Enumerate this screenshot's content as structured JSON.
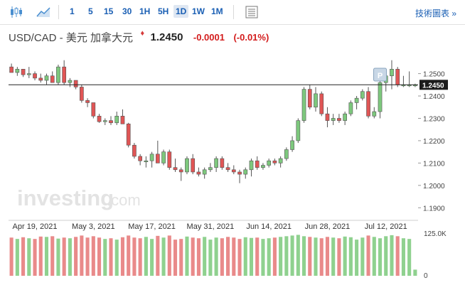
{
  "toolbar": {
    "timeframes": [
      "1",
      "5",
      "15",
      "30",
      "1H",
      "5H",
      "1D",
      "1W",
      "1M"
    ],
    "active_timeframe": "1D",
    "icons": [
      "candlestick-chart-icon",
      "area-chart-icon",
      "data-table-icon"
    ],
    "tech_link": "技術圖表 »"
  },
  "header": {
    "pair": "USD/CAD - 美元 加拿大元",
    "price": "1.2450",
    "change": "-0.0001",
    "change_pct": "(-0.01%)"
  },
  "colors": {
    "up": "#7dc87d",
    "down": "#e05555",
    "vol_up": "#8fd18f",
    "vol_down": "#e98a8a",
    "accent": "#1a5fb4"
  },
  "watermark": {
    "main": "investing",
    "suffix": ".com"
  },
  "chart_data": {
    "type": "candlestick",
    "title": "",
    "xlabel": "",
    "ylabel": "",
    "ylim": [
      1.185,
      1.2575
    ],
    "y_ticks": [
      "1.2500",
      "1.2400",
      "1.2300",
      "1.2200",
      "1.2100",
      "1.2000",
      "1.1900"
    ],
    "current_price": "1.2450",
    "x_tick_labels": [
      "Apr 19, 2021",
      "May 3, 2021",
      "May 17, 2021",
      "May 31, 2021",
      "Jun 14, 2021",
      "Jun 28, 2021",
      "Jul 12, 2021"
    ],
    "x_tick_index": [
      4,
      14,
      24,
      34,
      44,
      54,
      64
    ],
    "volume_ticks": [
      "125.0K",
      "0"
    ],
    "volume_max": 125,
    "marker_label": "P",
    "marker_index": 63,
    "grid": false,
    "series": [
      {
        "d": "Apr 13",
        "o": 1.253,
        "h": 1.2545,
        "l": 1.2505,
        "c": 1.2505,
        "v": 112
      },
      {
        "d": "Apr 14",
        "o": 1.2505,
        "h": 1.253,
        "l": 1.249,
        "c": 1.252,
        "v": 108
      },
      {
        "d": "Apr 15",
        "o": 1.252,
        "h": 1.252,
        "l": 1.2485,
        "c": 1.2495,
        "v": 113
      },
      {
        "d": "Apr 16",
        "o": 1.2495,
        "h": 1.253,
        "l": 1.248,
        "c": 1.25,
        "v": 110
      },
      {
        "d": "Apr 19",
        "o": 1.25,
        "h": 1.251,
        "l": 1.247,
        "c": 1.248,
        "v": 108
      },
      {
        "d": "Apr 20",
        "o": 1.248,
        "h": 1.25,
        "l": 1.246,
        "c": 1.247,
        "v": 115
      },
      {
        "d": "Apr 21",
        "o": 1.247,
        "h": 1.25,
        "l": 1.245,
        "c": 1.249,
        "v": 114
      },
      {
        "d": "Apr 22",
        "o": 1.249,
        "h": 1.251,
        "l": 1.246,
        "c": 1.246,
        "v": 116
      },
      {
        "d": "Apr 23",
        "o": 1.246,
        "h": 1.254,
        "l": 1.245,
        "c": 1.253,
        "v": 109
      },
      {
        "d": "Apr 26",
        "o": 1.253,
        "h": 1.256,
        "l": 1.245,
        "c": 1.246,
        "v": 112
      },
      {
        "d": "Apr 27",
        "o": 1.246,
        "h": 1.248,
        "l": 1.244,
        "c": 1.247,
        "v": 110
      },
      {
        "d": "Apr 28",
        "o": 1.247,
        "h": 1.247,
        "l": 1.243,
        "c": 1.244,
        "v": 114
      },
      {
        "d": "Apr 29",
        "o": 1.244,
        "h": 1.245,
        "l": 1.237,
        "c": 1.238,
        "v": 118
      },
      {
        "d": "Apr 30",
        "o": 1.238,
        "h": 1.239,
        "l": 1.235,
        "c": 1.237,
        "v": 112
      },
      {
        "d": "May 3",
        "o": 1.237,
        "h": 1.237,
        "l": 1.23,
        "c": 1.231,
        "v": 116
      },
      {
        "d": "May 4",
        "o": 1.231,
        "h": 1.232,
        "l": 1.228,
        "c": 1.2285,
        "v": 112
      },
      {
        "d": "May 5",
        "o": 1.2285,
        "h": 1.23,
        "l": 1.227,
        "c": 1.229,
        "v": 108
      },
      {
        "d": "May 6",
        "o": 1.229,
        "h": 1.231,
        "l": 1.227,
        "c": 1.228,
        "v": 110
      },
      {
        "d": "May 7",
        "o": 1.228,
        "h": 1.233,
        "l": 1.227,
        "c": 1.231,
        "v": 106
      },
      {
        "d": "May 10",
        "o": 1.231,
        "h": 1.234,
        "l": 1.228,
        "c": 1.2275,
        "v": 113
      },
      {
        "d": "May 11",
        "o": 1.2275,
        "h": 1.228,
        "l": 1.217,
        "c": 1.218,
        "v": 118
      },
      {
        "d": "May 12",
        "o": 1.218,
        "h": 1.219,
        "l": 1.212,
        "c": 1.213,
        "v": 112
      },
      {
        "d": "May 13",
        "o": 1.213,
        "h": 1.214,
        "l": 1.209,
        "c": 1.211,
        "v": 110
      },
      {
        "d": "May 14",
        "o": 1.211,
        "h": 1.213,
        "l": 1.208,
        "c": 1.211,
        "v": 114
      },
      {
        "d": "May 17",
        "o": 1.211,
        "h": 1.215,
        "l": 1.208,
        "c": 1.214,
        "v": 108
      },
      {
        "d": "May 18",
        "o": 1.214,
        "h": 1.22,
        "l": 1.21,
        "c": 1.21,
        "v": 117
      },
      {
        "d": "May 19",
        "o": 1.21,
        "h": 1.216,
        "l": 1.209,
        "c": 1.215,
        "v": 112
      },
      {
        "d": "May 20",
        "o": 1.215,
        "h": 1.216,
        "l": 1.207,
        "c": 1.208,
        "v": 118
      },
      {
        "d": "May 21",
        "o": 1.208,
        "h": 1.212,
        "l": 1.206,
        "c": 1.207,
        "v": 106
      },
      {
        "d": "May 24",
        "o": 1.207,
        "h": 1.208,
        "l": 1.202,
        "c": 1.206,
        "v": 108
      },
      {
        "d": "May 25",
        "o": 1.206,
        "h": 1.213,
        "l": 1.205,
        "c": 1.212,
        "v": 115
      },
      {
        "d": "May 26",
        "o": 1.212,
        "h": 1.214,
        "l": 1.205,
        "c": 1.206,
        "v": 112
      },
      {
        "d": "May 27",
        "o": 1.206,
        "h": 1.208,
        "l": 1.204,
        "c": 1.205,
        "v": 110
      },
      {
        "d": "May 28",
        "o": 1.205,
        "h": 1.208,
        "l": 1.203,
        "c": 1.207,
        "v": 114
      },
      {
        "d": "May 31",
        "o": 1.207,
        "h": 1.21,
        "l": 1.206,
        "c": 1.208,
        "v": 106
      },
      {
        "d": "Jun 1",
        "o": 1.208,
        "h": 1.213,
        "l": 1.206,
        "c": 1.212,
        "v": 112
      },
      {
        "d": "Jun 2",
        "o": 1.212,
        "h": 1.213,
        "l": 1.207,
        "c": 1.208,
        "v": 110
      },
      {
        "d": "Jun 3",
        "o": 1.208,
        "h": 1.21,
        "l": 1.206,
        "c": 1.207,
        "v": 114
      },
      {
        "d": "Jun 4",
        "o": 1.207,
        "h": 1.209,
        "l": 1.205,
        "c": 1.206,
        "v": 112
      },
      {
        "d": "Jun 7",
        "o": 1.206,
        "h": 1.207,
        "l": 1.201,
        "c": 1.205,
        "v": 108
      },
      {
        "d": "Jun 8",
        "o": 1.205,
        "h": 1.208,
        "l": 1.203,
        "c": 1.207,
        "v": 113
      },
      {
        "d": "Jun 9",
        "o": 1.207,
        "h": 1.212,
        "l": 1.204,
        "c": 1.211,
        "v": 111
      },
      {
        "d": "Jun 10",
        "o": 1.211,
        "h": 1.213,
        "l": 1.207,
        "c": 1.208,
        "v": 112
      },
      {
        "d": "Jun 11",
        "o": 1.208,
        "h": 1.21,
        "l": 1.207,
        "c": 1.209,
        "v": 108
      },
      {
        "d": "Jun 14",
        "o": 1.209,
        "h": 1.212,
        "l": 1.208,
        "c": 1.211,
        "v": 110
      },
      {
        "d": "Jun 15",
        "o": 1.211,
        "h": 1.212,
        "l": 1.209,
        "c": 1.21,
        "v": 112
      },
      {
        "d": "Jun 16",
        "o": 1.21,
        "h": 1.213,
        "l": 1.208,
        "c": 1.212,
        "v": 114
      },
      {
        "d": "Jun 17",
        "o": 1.212,
        "h": 1.217,
        "l": 1.211,
        "c": 1.216,
        "v": 116
      },
      {
        "d": "Jun 18",
        "o": 1.216,
        "h": 1.222,
        "l": 1.215,
        "c": 1.22,
        "v": 118
      },
      {
        "d": "Jun 21",
        "o": 1.22,
        "h": 1.23,
        "l": 1.219,
        "c": 1.229,
        "v": 120
      },
      {
        "d": "Jun 22",
        "o": 1.229,
        "h": 1.244,
        "l": 1.228,
        "c": 1.243,
        "v": 116
      },
      {
        "d": "Jun 23",
        "o": 1.243,
        "h": 1.245,
        "l": 1.234,
        "c": 1.235,
        "v": 114
      },
      {
        "d": "Jun 24",
        "o": 1.235,
        "h": 1.244,
        "l": 1.233,
        "c": 1.241,
        "v": 112
      },
      {
        "d": "Jun 25",
        "o": 1.241,
        "h": 1.242,
        "l": 1.231,
        "c": 1.232,
        "v": 110
      },
      {
        "d": "Jun 28",
        "o": 1.232,
        "h": 1.235,
        "l": 1.226,
        "c": 1.229,
        "v": 114
      },
      {
        "d": "Jun 29",
        "o": 1.229,
        "h": 1.232,
        "l": 1.227,
        "c": 1.23,
        "v": 112
      },
      {
        "d": "Jun 30",
        "o": 1.23,
        "h": 1.232,
        "l": 1.228,
        "c": 1.229,
        "v": 110
      },
      {
        "d": "Jul 1",
        "o": 1.229,
        "h": 1.233,
        "l": 1.227,
        "c": 1.232,
        "v": 115
      },
      {
        "d": "Jul 2",
        "o": 1.232,
        "h": 1.238,
        "l": 1.231,
        "c": 1.237,
        "v": 113
      },
      {
        "d": "Jul 5",
        "o": 1.237,
        "h": 1.24,
        "l": 1.234,
        "c": 1.239,
        "v": 106
      },
      {
        "d": "Jul 6",
        "o": 1.239,
        "h": 1.243,
        "l": 1.238,
        "c": 1.242,
        "v": 112
      },
      {
        "d": "Jul 7",
        "o": 1.242,
        "h": 1.244,
        "l": 1.23,
        "c": 1.231,
        "v": 118
      },
      {
        "d": "Jul 8",
        "o": 1.231,
        "h": 1.235,
        "l": 1.23,
        "c": 1.233,
        "v": 114
      },
      {
        "d": "Jul 9",
        "o": 1.233,
        "h": 1.248,
        "l": 1.23,
        "c": 1.246,
        "v": 110
      },
      {
        "d": "Jul 12",
        "o": 1.246,
        "h": 1.251,
        "l": 1.242,
        "c": 1.249,
        "v": 116
      },
      {
        "d": "Jul 13",
        "o": 1.249,
        "h": 1.256,
        "l": 1.243,
        "c": 1.252,
        "v": 119
      },
      {
        "d": "Jul 14",
        "o": 1.252,
        "h": 1.253,
        "l": 1.244,
        "c": 1.245,
        "v": 116
      },
      {
        "d": "Jul 15",
        "o": 1.245,
        "h": 1.249,
        "l": 1.244,
        "c": 1.245,
        "v": 110
      },
      {
        "d": "Jul 16",
        "o": 1.245,
        "h": 1.251,
        "l": 1.244,
        "c": 1.245,
        "v": 108
      },
      {
        "d": "Jul 19",
        "o": 1.245,
        "h": 1.2455,
        "l": 1.244,
        "c": 1.245,
        "v": 18
      }
    ]
  }
}
